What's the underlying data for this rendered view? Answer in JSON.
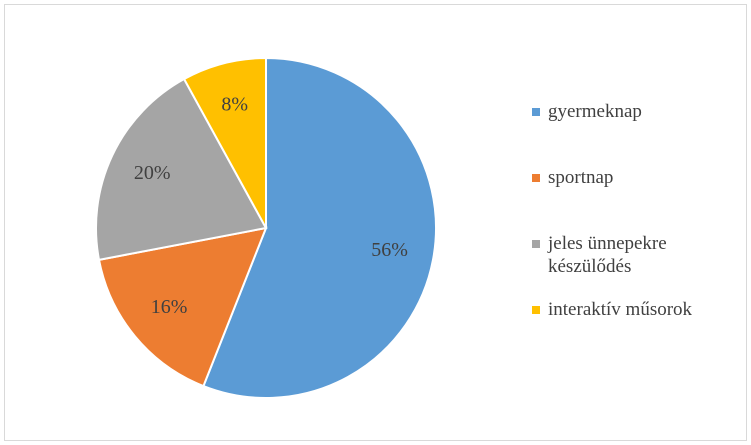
{
  "chart_data": {
    "type": "pie",
    "categories": [
      "gyermeknap",
      "sportnap",
      "jeles ünnepekre készülődés",
      "interaktív műsorok"
    ],
    "values": [
      56,
      16,
      20,
      8
    ],
    "value_labels": [
      "56%",
      "16%",
      "20%",
      "8%"
    ],
    "colors": [
      "#5b9bd5",
      "#ed7d31",
      "#a5a5a5",
      "#ffc000"
    ],
    "legend": "right"
  }
}
